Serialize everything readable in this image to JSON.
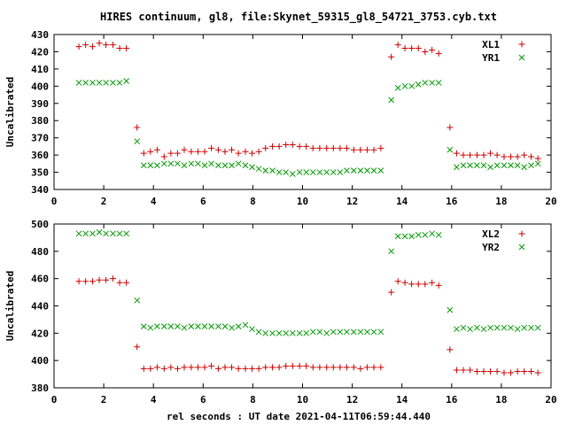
{
  "title": "HIRES continuum, gl8, file:Skynet_59315_gl8_54721_3753.cyb.txt",
  "xlabel": "rel seconds : UT date 2021-04-11T06:59:44.440",
  "chart_data": [
    {
      "type": "scatter",
      "ylabel": "Uncalibrated",
      "xlim": [
        0,
        20
      ],
      "ylim": [
        340,
        430
      ],
      "xticks": [
        0,
        2,
        4,
        6,
        8,
        10,
        12,
        14,
        16,
        18,
        20
      ],
      "yticks": [
        340,
        350,
        360,
        370,
        380,
        390,
        400,
        410,
        420,
        430
      ],
      "legend": "top-right",
      "series": [
        {
          "name": "XL1",
          "marker": "plus",
          "color": "#cc0000",
          "points": [
            [
              1.0,
              423
            ],
            [
              1.27,
              424
            ],
            [
              1.55,
              423
            ],
            [
              1.82,
              425
            ],
            [
              2.09,
              424
            ],
            [
              2.37,
              424
            ],
            [
              2.64,
              422
            ],
            [
              2.91,
              422
            ],
            [
              3.34,
              376
            ],
            [
              3.61,
              361
            ],
            [
              3.88,
              362
            ],
            [
              4.15,
              363
            ],
            [
              4.43,
              359
            ],
            [
              4.7,
              361
            ],
            [
              4.97,
              361
            ],
            [
              5.24,
              363
            ],
            [
              5.52,
              362
            ],
            [
              5.79,
              362
            ],
            [
              6.06,
              362
            ],
            [
              6.33,
              364
            ],
            [
              6.61,
              363
            ],
            [
              6.88,
              362
            ],
            [
              7.15,
              363
            ],
            [
              7.42,
              361
            ],
            [
              7.7,
              362
            ],
            [
              7.97,
              361
            ],
            [
              8.24,
              362
            ],
            [
              8.51,
              364
            ],
            [
              8.79,
              365
            ],
            [
              9.06,
              365
            ],
            [
              9.33,
              366
            ],
            [
              9.6,
              366
            ],
            [
              9.88,
              365
            ],
            [
              10.15,
              365
            ],
            [
              10.42,
              364
            ],
            [
              10.69,
              364
            ],
            [
              10.97,
              364
            ],
            [
              11.24,
              364
            ],
            [
              11.51,
              364
            ],
            [
              11.78,
              364
            ],
            [
              12.06,
              363
            ],
            [
              12.33,
              363
            ],
            [
              12.6,
              363
            ],
            [
              12.87,
              363
            ],
            [
              13.15,
              364
            ],
            [
              13.57,
              417
            ],
            [
              13.84,
              424
            ],
            [
              14.12,
              422
            ],
            [
              14.39,
              422
            ],
            [
              14.66,
              422
            ],
            [
              14.93,
              420
            ],
            [
              15.21,
              421
            ],
            [
              15.48,
              419
            ],
            [
              15.93,
              376
            ],
            [
              16.2,
              361
            ],
            [
              16.47,
              360
            ],
            [
              16.74,
              360
            ],
            [
              17.02,
              360
            ],
            [
              17.29,
              360
            ],
            [
              17.56,
              361
            ],
            [
              17.83,
              360
            ],
            [
              18.11,
              359
            ],
            [
              18.38,
              359
            ],
            [
              18.65,
              359
            ],
            [
              18.92,
              360
            ],
            [
              19.2,
              359
            ],
            [
              19.47,
              358
            ]
          ]
        },
        {
          "name": "YR1",
          "marker": "cross",
          "color": "#009900",
          "points": [
            [
              1.0,
              402
            ],
            [
              1.27,
              402
            ],
            [
              1.55,
              402
            ],
            [
              1.82,
              402
            ],
            [
              2.09,
              402
            ],
            [
              2.37,
              402
            ],
            [
              2.64,
              402
            ],
            [
              2.91,
              403
            ],
            [
              3.34,
              368
            ],
            [
              3.61,
              354
            ],
            [
              3.88,
              354
            ],
            [
              4.15,
              354
            ],
            [
              4.43,
              355
            ],
            [
              4.7,
              355
            ],
            [
              4.97,
              355
            ],
            [
              5.24,
              354
            ],
            [
              5.52,
              355
            ],
            [
              5.79,
              355
            ],
            [
              6.06,
              354
            ],
            [
              6.33,
              355
            ],
            [
              6.61,
              354
            ],
            [
              6.88,
              354
            ],
            [
              7.15,
              354
            ],
            [
              7.42,
              355
            ],
            [
              7.7,
              354
            ],
            [
              7.97,
              353
            ],
            [
              8.24,
              352
            ],
            [
              8.51,
              351
            ],
            [
              8.79,
              351
            ],
            [
              9.06,
              350
            ],
            [
              9.33,
              350
            ],
            [
              9.6,
              349
            ],
            [
              9.88,
              350
            ],
            [
              10.15,
              350
            ],
            [
              10.42,
              350
            ],
            [
              10.69,
              350
            ],
            [
              10.97,
              350
            ],
            [
              11.24,
              350
            ],
            [
              11.51,
              350
            ],
            [
              11.78,
              351
            ],
            [
              12.06,
              351
            ],
            [
              12.33,
              351
            ],
            [
              12.6,
              351
            ],
            [
              12.87,
              351
            ],
            [
              13.15,
              351
            ],
            [
              13.57,
              392
            ],
            [
              13.84,
              399
            ],
            [
              14.12,
              400
            ],
            [
              14.39,
              400
            ],
            [
              14.66,
              401
            ],
            [
              14.93,
              402
            ],
            [
              15.21,
              402
            ],
            [
              15.48,
              402
            ],
            [
              15.93,
              363
            ],
            [
              16.2,
              353
            ],
            [
              16.47,
              354
            ],
            [
              16.74,
              354
            ],
            [
              17.02,
              354
            ],
            [
              17.29,
              354
            ],
            [
              17.56,
              353
            ],
            [
              17.83,
              354
            ],
            [
              18.11,
              354
            ],
            [
              18.38,
              354
            ],
            [
              18.65,
              354
            ],
            [
              18.92,
              353
            ],
            [
              19.2,
              354
            ],
            [
              19.47,
              355
            ]
          ]
        }
      ]
    },
    {
      "type": "scatter",
      "ylabel": "Uncalibrated",
      "xlim": [
        0,
        20
      ],
      "ylim": [
        380,
        500
      ],
      "xticks": [
        0,
        2,
        4,
        6,
        8,
        10,
        12,
        14,
        16,
        18,
        20
      ],
      "yticks": [
        380,
        400,
        420,
        440,
        460,
        480,
        500
      ],
      "legend": "top-right",
      "series": [
        {
          "name": "XL2",
          "marker": "plus",
          "color": "#cc0000",
          "points": [
            [
              1.0,
              458
            ],
            [
              1.27,
              458
            ],
            [
              1.55,
              458
            ],
            [
              1.82,
              459
            ],
            [
              2.09,
              459
            ],
            [
              2.37,
              460
            ],
            [
              2.64,
              457
            ],
            [
              2.91,
              457
            ],
            [
              3.34,
              410
            ],
            [
              3.61,
              394
            ],
            [
              3.88,
              394
            ],
            [
              4.15,
              395
            ],
            [
              4.43,
              394
            ],
            [
              4.7,
              395
            ],
            [
              4.97,
              394
            ],
            [
              5.24,
              395
            ],
            [
              5.52,
              395
            ],
            [
              5.79,
              395
            ],
            [
              6.06,
              395
            ],
            [
              6.33,
              396
            ],
            [
              6.61,
              394
            ],
            [
              6.88,
              395
            ],
            [
              7.15,
              395
            ],
            [
              7.42,
              394
            ],
            [
              7.7,
              394
            ],
            [
              7.97,
              394
            ],
            [
              8.24,
              394
            ],
            [
              8.51,
              395
            ],
            [
              8.79,
              395
            ],
            [
              9.06,
              395
            ],
            [
              9.33,
              396
            ],
            [
              9.6,
              396
            ],
            [
              9.88,
              396
            ],
            [
              10.15,
              396
            ],
            [
              10.42,
              395
            ],
            [
              10.69,
              395
            ],
            [
              10.97,
              395
            ],
            [
              11.24,
              395
            ],
            [
              11.51,
              395
            ],
            [
              11.78,
              395
            ],
            [
              12.06,
              395
            ],
            [
              12.33,
              394
            ],
            [
              12.6,
              395
            ],
            [
              12.87,
              395
            ],
            [
              13.15,
              395
            ],
            [
              13.57,
              450
            ],
            [
              13.84,
              458
            ],
            [
              14.12,
              457
            ],
            [
              14.39,
              456
            ],
            [
              14.66,
              456
            ],
            [
              14.93,
              456
            ],
            [
              15.21,
              457
            ],
            [
              15.48,
              455
            ],
            [
              15.93,
              408
            ],
            [
              16.2,
              393
            ],
            [
              16.47,
              393
            ],
            [
              16.74,
              393
            ],
            [
              17.02,
              392
            ],
            [
              17.29,
              392
            ],
            [
              17.56,
              392
            ],
            [
              17.83,
              392
            ],
            [
              18.11,
              391
            ],
            [
              18.38,
              391
            ],
            [
              18.65,
              392
            ],
            [
              18.92,
              392
            ],
            [
              19.2,
              392
            ],
            [
              19.47,
              391
            ]
          ]
        },
        {
          "name": "YR2",
          "marker": "cross",
          "color": "#009900",
          "points": [
            [
              1.0,
              493
            ],
            [
              1.27,
              493
            ],
            [
              1.55,
              493
            ],
            [
              1.82,
              494
            ],
            [
              2.09,
              493
            ],
            [
              2.37,
              493
            ],
            [
              2.64,
              493
            ],
            [
              2.91,
              493
            ],
            [
              3.34,
              444
            ],
            [
              3.61,
              425
            ],
            [
              3.88,
              424
            ],
            [
              4.15,
              425
            ],
            [
              4.43,
              425
            ],
            [
              4.7,
              425
            ],
            [
              4.97,
              425
            ],
            [
              5.24,
              424
            ],
            [
              5.52,
              425
            ],
            [
              5.79,
              425
            ],
            [
              6.06,
              425
            ],
            [
              6.33,
              425
            ],
            [
              6.61,
              425
            ],
            [
              6.88,
              425
            ],
            [
              7.15,
              424
            ],
            [
              7.42,
              425
            ],
            [
              7.7,
              426
            ],
            [
              7.97,
              423
            ],
            [
              8.24,
              421
            ],
            [
              8.51,
              420
            ],
            [
              8.79,
              420
            ],
            [
              9.06,
              420
            ],
            [
              9.33,
              420
            ],
            [
              9.6,
              420
            ],
            [
              9.88,
              420
            ],
            [
              10.15,
              420
            ],
            [
              10.42,
              421
            ],
            [
              10.69,
              421
            ],
            [
              10.97,
              420
            ],
            [
              11.24,
              421
            ],
            [
              11.51,
              421
            ],
            [
              11.78,
              421
            ],
            [
              12.06,
              421
            ],
            [
              12.33,
              421
            ],
            [
              12.6,
              421
            ],
            [
              12.87,
              421
            ],
            [
              13.15,
              421
            ],
            [
              13.57,
              480
            ],
            [
              13.84,
              491
            ],
            [
              14.12,
              491
            ],
            [
              14.39,
              491
            ],
            [
              14.66,
              492
            ],
            [
              14.93,
              492
            ],
            [
              15.21,
              493
            ],
            [
              15.48,
              492
            ],
            [
              15.93,
              437
            ],
            [
              16.2,
              423
            ],
            [
              16.47,
              424
            ],
            [
              16.74,
              423
            ],
            [
              17.02,
              424
            ],
            [
              17.29,
              423
            ],
            [
              17.56,
              424
            ],
            [
              17.83,
              424
            ],
            [
              18.11,
              424
            ],
            [
              18.38,
              424
            ],
            [
              18.65,
              423
            ],
            [
              18.92,
              424
            ],
            [
              19.2,
              424
            ],
            [
              19.47,
              424
            ]
          ]
        }
      ]
    }
  ]
}
